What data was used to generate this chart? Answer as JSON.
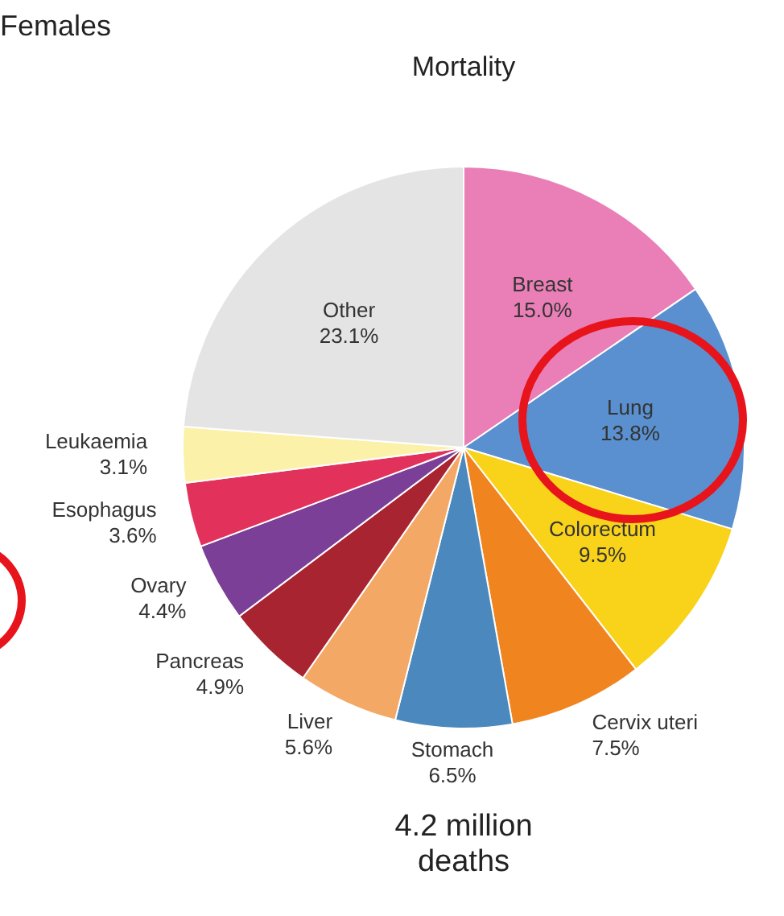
{
  "chart_data": {
    "type": "pie",
    "title": "Females",
    "subtitle": "Mortality",
    "categories": [
      "Breast",
      "Lung",
      "Colorectum",
      "Cervix uteri",
      "Stomach",
      "Liver",
      "Pancreas",
      "Ovary",
      "Esophagus",
      "Leukaemia",
      "Other"
    ],
    "values": [
      15.0,
      13.8,
      9.5,
      7.5,
      6.5,
      5.6,
      4.9,
      4.4,
      3.6,
      3.1,
      23.1
    ],
    "value_labels": [
      "15.0%",
      "13.8%",
      "9.5%",
      "7.5%",
      "6.5%",
      "5.6%",
      "4.9%",
      "4.4%",
      "3.6%",
      "3.1%",
      "23.1%"
    ],
    "colors": [
      "#e97fb6",
      "#5a90cf",
      "#f8d31a",
      "#f0841f",
      "#4b88bd",
      "#f4a866",
      "#a82430",
      "#7b3f97",
      "#e2325b",
      "#fbf1a8",
      "#e4e4e4"
    ],
    "annotations": [
      "4.2 million deaths"
    ],
    "legend": false
  }
}
